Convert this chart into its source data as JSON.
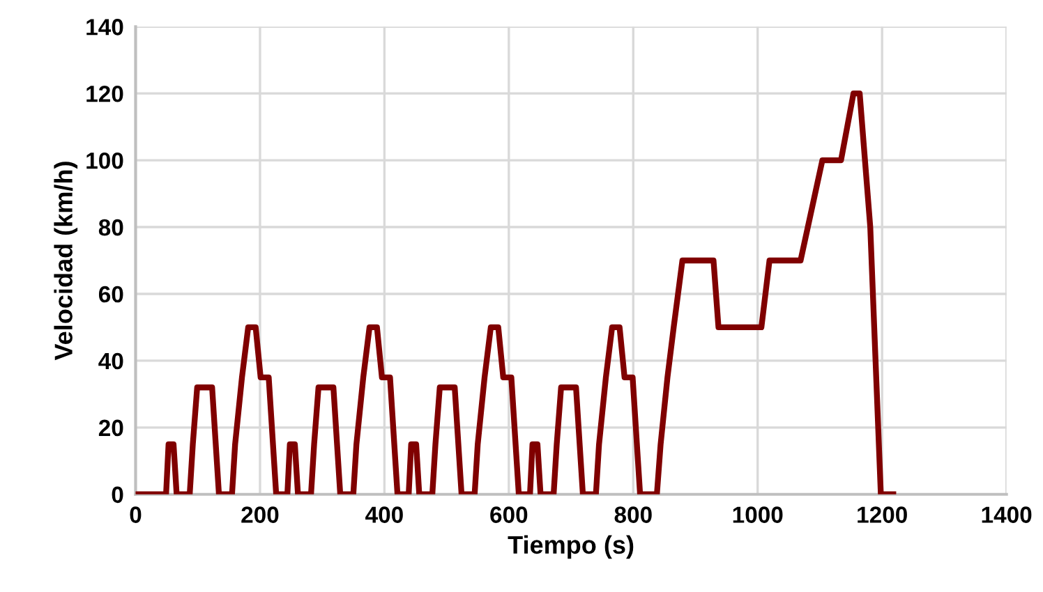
{
  "chart_data": {
    "type": "line",
    "xlabel": "Tiempo (s)",
    "ylabel": "Velocidad (km/h)",
    "xlim": [
      0,
      1400
    ],
    "xticks": [
      0,
      200,
      400,
      600,
      800,
      1000,
      1200,
      1400
    ],
    "ylim": [
      0,
      140
    ],
    "yticks": [
      0,
      20,
      40,
      60,
      80,
      100,
      120,
      140
    ],
    "grid": true,
    "marker": "none",
    "line_style": "solid",
    "series": [
      {
        "color": "#800000",
        "x": [
          0,
          49,
          53,
          61,
          66,
          87,
          92,
          99,
          123,
          134,
          155,
          160,
          171,
          181,
          193,
          201,
          214,
          226,
          233,
          244,
          248,
          256,
          261,
          282,
          287,
          294,
          318,
          329,
          350,
          355,
          366,
          376,
          388,
          396,
          409,
          421,
          428,
          439,
          443,
          451,
          456,
          477,
          482,
          489,
          513,
          524,
          545,
          550,
          561,
          571,
          583,
          591,
          604,
          616,
          623,
          634,
          638,
          646,
          651,
          672,
          677,
          684,
          708,
          719,
          740,
          745,
          756,
          766,
          778,
          786,
          799,
          811,
          818,
          838,
          844,
          855,
          865,
          879,
          929,
          937,
          1006,
          1019,
          1069,
          1104,
          1134,
          1154,
          1164,
          1181,
          1198,
          1218
        ],
        "values": [
          0,
          0,
          15,
          15,
          0,
          0,
          15,
          32,
          32,
          0,
          0,
          15,
          35,
          50,
          50,
          35,
          35,
          0,
          0,
          0,
          15,
          15,
          0,
          0,
          15,
          32,
          32,
          0,
          0,
          15,
          35,
          50,
          50,
          35,
          35,
          0,
          0,
          0,
          15,
          15,
          0,
          0,
          15,
          32,
          32,
          0,
          0,
          15,
          35,
          50,
          50,
          35,
          35,
          0,
          0,
          0,
          15,
          15,
          0,
          0,
          15,
          32,
          32,
          0,
          0,
          15,
          35,
          50,
          50,
          35,
          35,
          0,
          0,
          0,
          15,
          35,
          50,
          70,
          70,
          50,
          50,
          70,
          70,
          100,
          100,
          120,
          120,
          80,
          0,
          0
        ]
      }
    ]
  }
}
